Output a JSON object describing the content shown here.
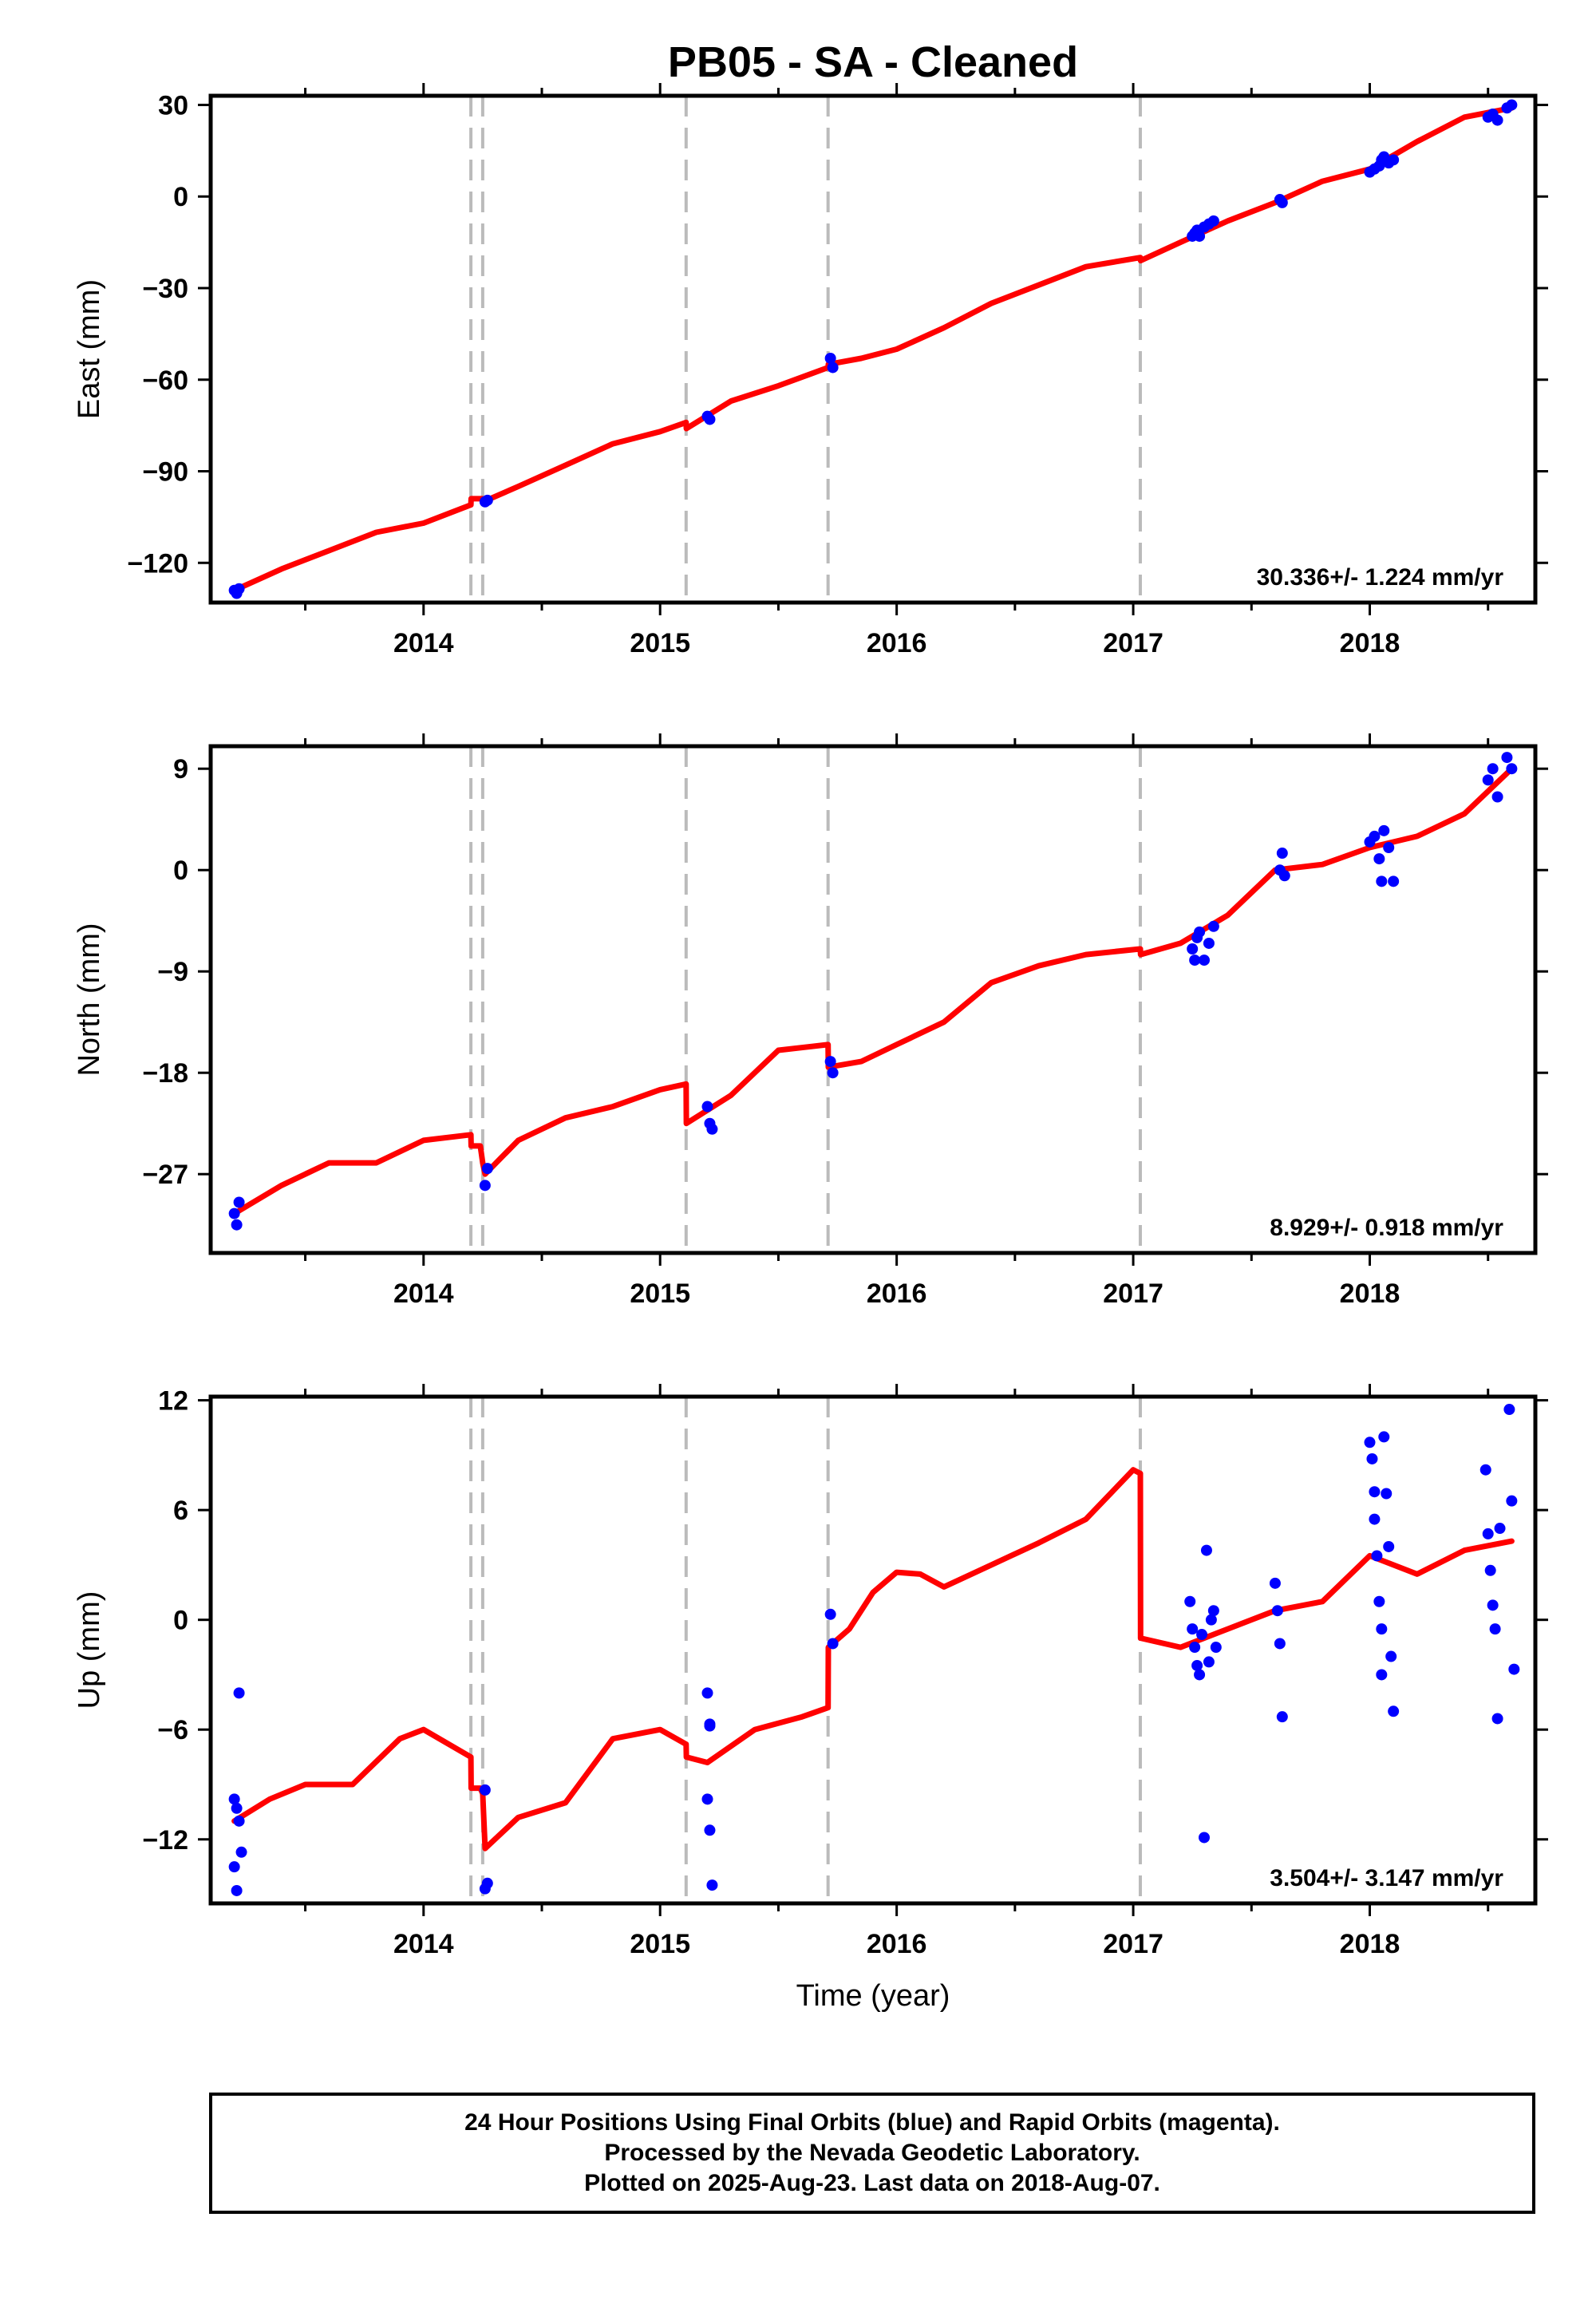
{
  "chart_data": [
    {
      "type": "scatter",
      "title": "PB05  - SA - Cleaned",
      "ylabel": "East (mm)",
      "xlabel": "",
      "xlim": [
        2013.1,
        2018.7
      ],
      "ylim": [
        -133,
        33
      ],
      "yticks": [
        30,
        0,
        -30,
        -60,
        -90,
        -120
      ],
      "xticks": [
        2014,
        2015,
        2016,
        2017,
        2018
      ],
      "rate_text": "30.336+/- 1.224 mm/yr",
      "breaks": [
        2014.2,
        2014.25,
        2015.11,
        2015.71,
        2017.03
      ],
      "colors": {
        "data": "#0000ff",
        "model": "#ff0000",
        "breaks": "#bbbbbb"
      },
      "series": [
        {
          "name": "Final Orbits (blue)",
          "kind": "points",
          "x": [
            2013.2,
            2013.21,
            2013.22,
            2014.26,
            2014.27,
            2015.2,
            2015.21,
            2015.72,
            2015.73,
            2017.25,
            2017.26,
            2017.27,
            2017.28,
            2017.3,
            2017.32,
            2017.34,
            2017.62,
            2017.63,
            2018.0,
            2018.02,
            2018.04,
            2018.05,
            2018.06,
            2018.08,
            2018.1,
            2018.5,
            2018.52,
            2018.54,
            2018.58,
            2018.6
          ],
          "y": [
            -129,
            -130,
            -128.5,
            -100,
            -99.5,
            -72,
            -73,
            -53,
            -56,
            -13,
            -12,
            -11,
            -13,
            -10,
            -9,
            -8,
            -1,
            -2,
            8,
            9,
            10,
            12,
            13,
            11,
            12,
            26,
            27,
            25,
            29,
            30
          ]
        },
        {
          "name": "Model",
          "kind": "line",
          "x": [
            2013.2,
            2013.4,
            2013.6,
            2013.8,
            2014.0,
            2014.2,
            2014.201,
            2014.25,
            2014.251,
            2014.4,
            2014.6,
            2014.8,
            2015.0,
            2015.11,
            2015.111,
            2015.3,
            2015.5,
            2015.71,
            2015.711,
            2015.85,
            2016.0,
            2016.2,
            2016.4,
            2016.6,
            2016.8,
            2017.03,
            2017.031,
            2017.2,
            2017.4,
            2017.6,
            2017.8,
            2018.0,
            2018.2,
            2018.4,
            2018.6
          ],
          "y": [
            -129,
            -122,
            -116,
            -110,
            -107,
            -101,
            -99,
            -99,
            -100,
            -95,
            -88,
            -81,
            -77,
            -74,
            -76,
            -67,
            -62,
            -56,
            -55,
            -53,
            -50,
            -43,
            -35,
            -29,
            -23,
            -20,
            -21,
            -15,
            -8,
            -2,
            5,
            9,
            18,
            26,
            29
          ]
        }
      ]
    },
    {
      "type": "scatter",
      "title": "",
      "ylabel": "North (mm)",
      "xlabel": "",
      "xlim": [
        2013.1,
        2018.7
      ],
      "ylim": [
        -34,
        11
      ],
      "yticks": [
        9,
        0,
        -9,
        -18,
        -27
      ],
      "xticks": [
        2014,
        2015,
        2016,
        2017,
        2018
      ],
      "rate_text": "8.929+/- 0.918 mm/yr",
      "breaks": [
        2014.2,
        2014.25,
        2015.11,
        2015.71,
        2017.03
      ],
      "colors": {
        "data": "#0000ff",
        "model": "#ff0000",
        "breaks": "#bbbbbb"
      },
      "series": [
        {
          "name": "Final Orbits (blue)",
          "kind": "points",
          "x": [
            2013.2,
            2013.21,
            2013.22,
            2014.26,
            2014.27,
            2015.2,
            2015.21,
            2015.22,
            2015.72,
            2015.73,
            2017.25,
            2017.26,
            2017.27,
            2017.28,
            2017.3,
            2017.32,
            2017.34,
            2017.62,
            2017.63,
            2017.64,
            2018.0,
            2018.02,
            2018.04,
            2018.05,
            2018.06,
            2018.08,
            2018.1,
            2018.5,
            2018.52,
            2018.54,
            2018.58,
            2018.6
          ],
          "y": [
            -30.5,
            -31.5,
            -29.5,
            -28,
            -26.5,
            -21,
            -22.5,
            -23,
            -17,
            -18,
            -7,
            -8,
            -6,
            -5.5,
            -8,
            -6.5,
            -5,
            0,
            1.5,
            -0.5,
            2.5,
            3,
            1,
            -1,
            3.5,
            2,
            -1,
            8,
            9,
            6.5,
            10,
            9
          ],
          "note": "approximate"
        },
        {
          "name": "Model",
          "kind": "line",
          "x": [
            2013.2,
            2013.4,
            2013.6,
            2013.8,
            2014.0,
            2014.2,
            2014.201,
            2014.24,
            2014.25,
            2014.26,
            2014.4,
            2014.6,
            2014.8,
            2015.0,
            2015.11,
            2015.111,
            2015.3,
            2015.5,
            2015.71,
            2015.711,
            2015.85,
            2016.0,
            2016.2,
            2016.4,
            2016.6,
            2016.8,
            2017.03,
            2017.031,
            2017.2,
            2017.4,
            2017.6,
            2017.8,
            2018.0,
            2018.2,
            2018.4,
            2018.6
          ],
          "y": [
            -30.5,
            -28,
            -26,
            -26,
            -24,
            -23.5,
            -24.5,
            -24.5,
            -26,
            -27,
            -24,
            -22,
            -21,
            -19.5,
            -19,
            -22.5,
            -20,
            -16,
            -15.5,
            -17.5,
            -17,
            -15.5,
            -13.5,
            -10,
            -8.5,
            -7.5,
            -7,
            -7.5,
            -6.5,
            -4,
            0,
            0.5,
            2,
            3,
            5,
            9
          ]
        }
      ]
    },
    {
      "type": "scatter",
      "title": "",
      "ylabel": "Up (mm)",
      "xlabel": "Time (year)",
      "xlim": [
        2013.1,
        2018.7
      ],
      "ylim": [
        -15.5,
        12.2
      ],
      "yticks": [
        12,
        6,
        0,
        -6,
        -12
      ],
      "xticks": [
        2014,
        2015,
        2016,
        2017,
        2018
      ],
      "rate_text": "3.504+/- 3.147 mm/yr",
      "breaks": [
        2014.2,
        2014.25,
        2015.11,
        2015.71,
        2017.03
      ],
      "colors": {
        "data": "#0000ff",
        "model": "#ff0000",
        "breaks": "#bbbbbb"
      },
      "series": [
        {
          "name": "Final Orbits (blue)",
          "kind": "points",
          "x": [
            2013.2,
            2013.21,
            2013.22,
            2013.23,
            2013.2,
            2013.21,
            2013.22,
            2014.26,
            2014.27,
            2014.26,
            2015.2,
            2015.21,
            2015.2,
            2015.21,
            2015.22,
            2015.21,
            2015.72,
            2015.73,
            2017.24,
            2017.25,
            2017.26,
            2017.27,
            2017.28,
            2017.29,
            2017.3,
            2017.31,
            2017.32,
            2017.33,
            2017.34,
            2017.35,
            2017.6,
            2017.61,
            2017.62,
            2017.63,
            2018.0,
            2018.01,
            2018.02,
            2018.03,
            2018.04,
            2018.05,
            2018.06,
            2018.07,
            2018.08,
            2018.09,
            2018.1,
            2018.02,
            2018.05,
            2018.49,
            2018.5,
            2018.51,
            2018.52,
            2018.53,
            2018.54,
            2018.55,
            2018.59,
            2018.6,
            2018.61
          ],
          "y": [
            -9.8,
            -10.3,
            -4,
            -12.7,
            -13.5,
            -14.8,
            -11,
            -9.3,
            -14.4,
            -14.7,
            -4,
            -5.7,
            -9.8,
            -11.5,
            -14.5,
            -5.8,
            0.3,
            -1.3,
            1,
            -0.5,
            -1.5,
            -2.5,
            -3,
            -0.8,
            -11.9,
            3.8,
            -2.3,
            0,
            0.5,
            -1.5,
            2,
            0.5,
            -1.3,
            -5.3,
            9.7,
            8.8,
            5.5,
            3.5,
            1,
            -0.5,
            10,
            6.9,
            4,
            -2,
            -5,
            7,
            -3,
            8.2,
            4.7,
            2.7,
            0.8,
            -0.5,
            -5.4,
            5,
            11.5,
            6.5,
            -2.7
          ]
        },
        {
          "name": "Model",
          "kind": "line",
          "x": [
            2013.2,
            2013.35,
            2013.5,
            2013.7,
            2013.9,
            2014.0,
            2014.2,
            2014.201,
            2014.24,
            2014.25,
            2014.26,
            2014.4,
            2014.6,
            2014.8,
            2015.0,
            2015.11,
            2015.111,
            2015.2,
            2015.4,
            2015.6,
            2015.71,
            2015.711,
            2015.8,
            2015.9,
            2016.0,
            2016.1,
            2016.2,
            2016.4,
            2016.6,
            2016.8,
            2017.0,
            2017.03,
            2017.031,
            2017.2,
            2017.4,
            2017.6,
            2017.8,
            2018.0,
            2018.2,
            2018.4,
            2018.6
          ],
          "y": [
            -11,
            -9.8,
            -9,
            -9,
            -6.5,
            -6,
            -7.5,
            -9.2,
            -9.2,
            -9.5,
            -12.5,
            -10.8,
            -10,
            -6.5,
            -6,
            -6.8,
            -7.5,
            -7.8,
            -6,
            -5.3,
            -4.8,
            -1.5,
            -0.5,
            1.5,
            2.6,
            2.5,
            1.8,
            3,
            4.2,
            5.5,
            8.2,
            8,
            -1,
            -1.5,
            -0.5,
            0.5,
            1,
            3.5,
            2.5,
            3.8,
            4.3
          ]
        }
      ]
    }
  ],
  "footer": {
    "line1": "24 Hour Positions Using Final Orbits (blue) and Rapid Orbits (magenta).",
    "line2": "Processed by the Nevada Geodetic Laboratory.",
    "line3": "Plotted on 2025-Aug-23. Last data on 2018-Aug-07."
  }
}
